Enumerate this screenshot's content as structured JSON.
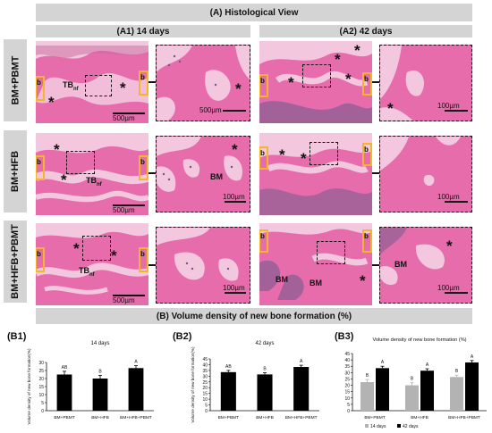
{
  "header": {
    "title": "(A) Histological View"
  },
  "columns": {
    "col1": "(A1) 14 days",
    "col2": "(A2) 42 days"
  },
  "rows": {
    "row1": "BM+PBMT",
    "row2": "BM+HFB",
    "row3": "BM+HFB+PBMT"
  },
  "annotations": {
    "tb_main": "TB",
    "tb_sub": "nf",
    "bm": "BM",
    "b": "b",
    "asterisk": "*"
  },
  "scales": {
    "overview": "500µm",
    "zoom": "100µm"
  },
  "section_b": {
    "title": "(B) Volume density of new bone formation (%)"
  },
  "colors": {
    "band": "#d4d4d4",
    "tissue_pink": "#e76cab",
    "tissue_pale": "#f3c7dd",
    "bone_dark": "#b83a82",
    "marrow": "#6b5a8c",
    "yellow_outline": "#f2b52c",
    "bar_black": "#000000",
    "bar_gray": "#b3b3b3"
  },
  "chart_data": [
    {
      "id": "B1",
      "label": "(B1)",
      "type": "bar",
      "title": "14 days",
      "ylabel": "Volume density of new bone formation(%)",
      "ylim": [
        0,
        30
      ],
      "yticks": [
        0,
        5,
        10,
        15,
        20,
        25,
        30
      ],
      "categories": [
        "BM+PBMT",
        "BM+HFB",
        "BM+HFB+PBMT"
      ],
      "values": [
        22.5,
        20.0,
        26.5
      ],
      "errors": [
        2.0,
        2.0,
        1.5
      ],
      "letters": [
        "AB",
        "B",
        "A"
      ]
    },
    {
      "id": "B2",
      "label": "(B2)",
      "type": "bar",
      "title": "42 days",
      "ylabel": "Volume density of new bone formation(%)",
      "ylim": [
        0,
        45
      ],
      "yticks": [
        0,
        5,
        10,
        15,
        20,
        25,
        30,
        35,
        40,
        45
      ],
      "categories": [
        "BM+PBMT",
        "BM+HFB",
        "BM+HFB+PBMT"
      ],
      "values": [
        33.5,
        31.5,
        38.0
      ],
      "errors": [
        1.5,
        1.5,
        1.5
      ],
      "letters": [
        "AB",
        "B",
        "A"
      ]
    },
    {
      "id": "B3",
      "label": "(B3)",
      "type": "bar",
      "title": "Volume density of new bone formation (%)",
      "ylim": [
        0,
        45
      ],
      "yticks": [
        0,
        5,
        10,
        15,
        20,
        25,
        30,
        35,
        40,
        45
      ],
      "categories": [
        "BM+PBMT",
        "BM+HFB",
        "BM+HFB+PBMT"
      ],
      "series": [
        {
          "name": "14 days",
          "color": "#b3b3b3",
          "values": [
            22.5,
            20.0,
            26.5
          ],
          "errors": [
            2.0,
            2.0,
            1.5
          ],
          "letters": [
            "B",
            "B",
            "B"
          ]
        },
        {
          "name": "42 days",
          "color": "#000000",
          "values": [
            33.5,
            31.5,
            38.0
          ],
          "errors": [
            1.5,
            1.5,
            1.5
          ],
          "letters": [
            "A",
            "A",
            "A"
          ]
        }
      ],
      "legend": "bottom"
    }
  ]
}
